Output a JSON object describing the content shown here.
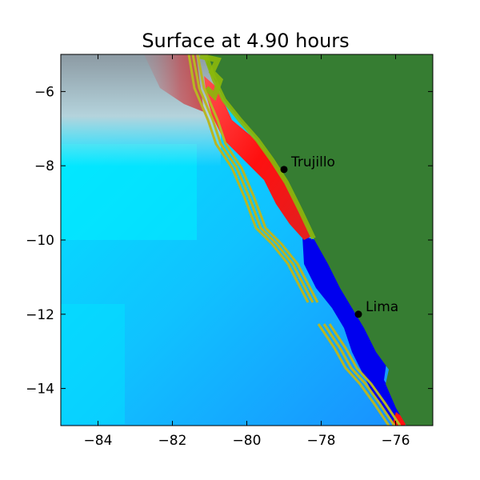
{
  "title": "Surface at 4.90 hours",
  "axes": {
    "x_ticks": [
      {
        "value": -84,
        "label": "−84"
      },
      {
        "value": -82,
        "label": "−82"
      },
      {
        "value": -80,
        "label": "−80"
      },
      {
        "value": -78,
        "label": "−78"
      },
      {
        "value": -76,
        "label": "−76"
      }
    ],
    "y_ticks": [
      {
        "value": -6,
        "label": "−6"
      },
      {
        "value": -8,
        "label": "−8"
      },
      {
        "value": -10,
        "label": "−10"
      },
      {
        "value": -12,
        "label": "−12"
      },
      {
        "value": -14,
        "label": "−14"
      }
    ],
    "xlim": [
      -85,
      -75
    ],
    "ylim": [
      -15,
      -5
    ]
  },
  "places": [
    {
      "name": "Trujillo",
      "lon": -79.0,
      "lat": -8.1
    },
    {
      "name": "Lima",
      "lon": -77.0,
      "lat": -12.0
    }
  ],
  "colors": {
    "land": "#367d32",
    "land_edge": "#8bb80b",
    "fault_lines": "#b8b623",
    "wave_positive": "#ff1a1a",
    "wave_negative": "#0000ee",
    "ocean_light": "#00e6ff",
    "ocean_mid": "#1aa6ff"
  }
}
